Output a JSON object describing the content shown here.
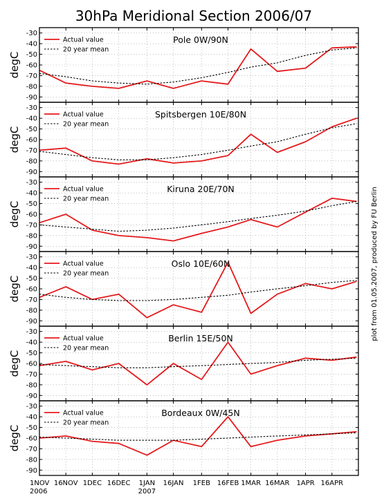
{
  "title": "30hPa Meridional Section 2006/07",
  "side_note": "plot from 01.05.2007, produced by FU Berlin",
  "ylabel": "degC",
  "legend": {
    "actual": "Actual value",
    "mean": "20 year mean"
  },
  "colors": {
    "actual": "#e41a1c",
    "mean": "#000000",
    "frame": "#000000",
    "grid": "#9a9a9a"
  },
  "x_ticks": [
    {
      "line1": "1NOV",
      "line2": "2006"
    },
    {
      "line1": "16NOV",
      "line2": ""
    },
    {
      "line1": "1DEC",
      "line2": ""
    },
    {
      "line1": "16DEC",
      "line2": ""
    },
    {
      "line1": "1JAN",
      "line2": "2007"
    },
    {
      "line1": "16JAN",
      "line2": ""
    },
    {
      "line1": "1FEB",
      "line2": ""
    },
    {
      "line1": "16FEB",
      "line2": ""
    },
    {
      "line1": "1MAR",
      "line2": ""
    },
    {
      "line1": "16MAR",
      "line2": ""
    },
    {
      "line1": "1APR",
      "line2": ""
    },
    {
      "line1": "16APR",
      "line2": ""
    }
  ],
  "chart_data": [
    {
      "type": "line",
      "title": "Pole 0W/90N",
      "ylabel": "degC",
      "yticks": [
        -30,
        -40,
        -50,
        -60,
        -70,
        -80,
        -90
      ],
      "ylim": [
        -95,
        -25
      ],
      "x_dates": [
        "2006-11-01",
        "2006-11-16",
        "2006-12-01",
        "2006-12-16",
        "2007-01-01",
        "2007-01-16",
        "2007-02-01",
        "2007-02-16",
        "2007-03-01",
        "2007-03-16",
        "2007-04-01",
        "2007-04-16",
        "2007-04-30"
      ],
      "series": [
        {
          "name": "Actual value",
          "values": [
            -65,
            -77,
            -80,
            -82,
            -75,
            -82,
            -75,
            -78,
            -45,
            -66,
            -63,
            -44,
            -43
          ]
        },
        {
          "name": "20 year mean",
          "values": [
            -68,
            -71,
            -75,
            -77,
            -78,
            -76,
            -72,
            -67,
            -62,
            -58,
            -51,
            -46,
            -44
          ]
        }
      ]
    },
    {
      "type": "line",
      "title": "Spitsbergen 10E/80N",
      "ylabel": "degC",
      "yticks": [
        -30,
        -40,
        -50,
        -60,
        -70,
        -80,
        -90
      ],
      "ylim": [
        -95,
        -25
      ],
      "x_dates": [
        "2006-11-01",
        "2006-11-16",
        "2006-12-01",
        "2006-12-16",
        "2007-01-01",
        "2007-01-16",
        "2007-02-01",
        "2007-02-16",
        "2007-03-01",
        "2007-03-16",
        "2007-04-01",
        "2007-04-16",
        "2007-04-30"
      ],
      "series": [
        {
          "name": "Actual value",
          "values": [
            -70,
            -68,
            -80,
            -83,
            -78,
            -82,
            -80,
            -75,
            -55,
            -72,
            -62,
            -48,
            -40
          ]
        },
        {
          "name": "20 year mean",
          "values": [
            -71,
            -74,
            -77,
            -79,
            -79,
            -77,
            -74,
            -70,
            -66,
            -62,
            -55,
            -49,
            -45
          ]
        }
      ]
    },
    {
      "type": "line",
      "title": "Kiruna 20E/70N",
      "ylabel": "degC",
      "yticks": [
        -30,
        -40,
        -50,
        -60,
        -70,
        -80,
        -90
      ],
      "ylim": [
        -95,
        -25
      ],
      "x_dates": [
        "2006-11-01",
        "2006-11-16",
        "2006-12-01",
        "2006-12-16",
        "2007-01-01",
        "2007-01-16",
        "2007-02-01",
        "2007-02-16",
        "2007-03-01",
        "2007-03-16",
        "2007-04-01",
        "2007-04-16",
        "2007-04-30"
      ],
      "series": [
        {
          "name": "Actual value",
          "values": [
            -68,
            -60,
            -75,
            -80,
            -82,
            -85,
            -78,
            -72,
            -65,
            -72,
            -58,
            -45,
            -48
          ]
        },
        {
          "name": "20 year mean",
          "values": [
            -70,
            -72,
            -74,
            -76,
            -75,
            -73,
            -70,
            -67,
            -64,
            -61,
            -57,
            -52,
            -48
          ]
        }
      ]
    },
    {
      "type": "line",
      "title": "Oslo 10E/60N",
      "ylabel": "degC",
      "yticks": [
        -30,
        -40,
        -50,
        -60,
        -70,
        -80,
        -90
      ],
      "ylim": [
        -95,
        -25
      ],
      "x_dates": [
        "2006-11-01",
        "2006-11-16",
        "2006-12-01",
        "2006-12-16",
        "2007-01-01",
        "2007-01-16",
        "2007-02-01",
        "2007-02-16",
        "2007-03-01",
        "2007-03-16",
        "2007-04-01",
        "2007-04-16",
        "2007-04-30"
      ],
      "series": [
        {
          "name": "Actual value",
          "values": [
            -68,
            -58,
            -70,
            -65,
            -87,
            -75,
            -82,
            -35,
            -83,
            -65,
            -55,
            -60,
            -53
          ]
        },
        {
          "name": "20 year mean",
          "values": [
            -65,
            -68,
            -70,
            -71,
            -71,
            -70,
            -68,
            -66,
            -63,
            -60,
            -57,
            -54,
            -52
          ]
        }
      ]
    },
    {
      "type": "line",
      "title": "Berlin 15E/50N",
      "ylabel": "degC",
      "yticks": [
        -30,
        -40,
        -50,
        -60,
        -70,
        -80,
        -90
      ],
      "ylim": [
        -95,
        -25
      ],
      "x_dates": [
        "2006-11-01",
        "2006-11-16",
        "2006-12-01",
        "2006-12-16",
        "2007-01-01",
        "2007-01-16",
        "2007-02-01",
        "2007-02-16",
        "2007-03-01",
        "2007-03-16",
        "2007-04-01",
        "2007-04-16",
        "2007-04-30"
      ],
      "series": [
        {
          "name": "Actual value",
          "values": [
            -62,
            -58,
            -66,
            -60,
            -80,
            -60,
            -75,
            -40,
            -70,
            -62,
            -55,
            -57,
            -54
          ]
        },
        {
          "name": "20 year mean",
          "values": [
            -61,
            -62,
            -63,
            -64,
            -64,
            -63,
            -62,
            -61,
            -60,
            -59,
            -57,
            -56,
            -55
          ]
        }
      ]
    },
    {
      "type": "line",
      "title": "Bordeaux 0W/45N",
      "ylabel": "degC",
      "yticks": [
        -30,
        -40,
        -50,
        -60,
        -70,
        -80,
        -90
      ],
      "ylim": [
        -95,
        -25
      ],
      "x_dates": [
        "2006-11-01",
        "2006-11-16",
        "2006-12-01",
        "2006-12-16",
        "2007-01-01",
        "2007-01-16",
        "2007-02-01",
        "2007-02-16",
        "2007-03-01",
        "2007-03-16",
        "2007-04-01",
        "2007-04-16",
        "2007-04-30"
      ],
      "series": [
        {
          "name": "Actual value",
          "values": [
            -60,
            -58,
            -63,
            -65,
            -76,
            -62,
            -68,
            -40,
            -68,
            -62,
            -58,
            -56,
            -54
          ]
        },
        {
          "name": "20 year mean",
          "values": [
            -59,
            -60,
            -61,
            -62,
            -62,
            -62,
            -61,
            -60,
            -59,
            -58,
            -57,
            -56,
            -55
          ]
        }
      ]
    }
  ]
}
